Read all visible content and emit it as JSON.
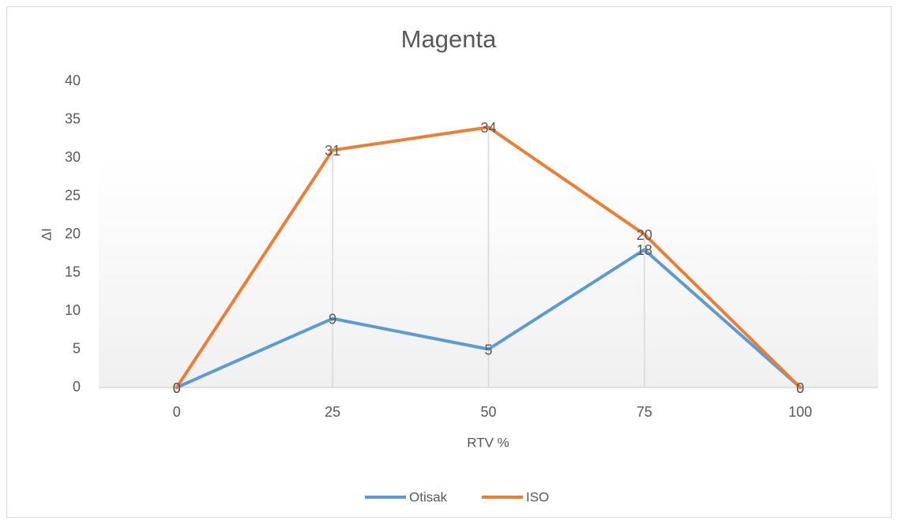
{
  "chart_data": {
    "type": "line",
    "title": "Magenta",
    "x_label": "RTV %",
    "y_label": "ΔI",
    "x": [
      0,
      25,
      50,
      75,
      100
    ],
    "series": [
      {
        "name": "Otisak",
        "color": "#5b9bd5",
        "values": [
          0,
          9,
          5,
          18,
          0
        ]
      },
      {
        "name": "ISO",
        "color": "#ed7d31",
        "values": [
          0,
          31,
          34,
          20,
          0
        ]
      }
    ],
    "xlim": [
      -12.5,
      112.5
    ],
    "xticks": [
      0,
      25,
      50,
      75,
      100
    ],
    "ylim": [
      0,
      40
    ],
    "yticks": [
      0,
      5,
      10,
      15,
      20,
      25,
      30,
      35,
      40
    ],
    "grid": false,
    "drop_lines": true,
    "legend": "bottom"
  }
}
